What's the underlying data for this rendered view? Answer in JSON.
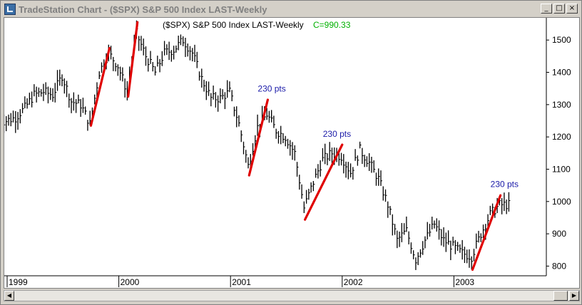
{
  "window": {
    "title": "TradeStation Chart - ($SPX) S&P 500 Index LAST-Weekly",
    "minimize_glyph": "_",
    "maximize_glyph": "□",
    "close_glyph": "×",
    "icon": "chart-app-icon"
  },
  "chart": {
    "header": "($SPX) S&P 500 Index LAST-Weekly",
    "close_label": "C=990.33",
    "colors": {
      "bars": "#000000",
      "trendlines": "#e00000",
      "annotation": "#1a1aa8",
      "close_label": "#00b000",
      "axis": "#000000"
    },
    "annotations": [
      "230 pts",
      "230 pts",
      "230 pts"
    ]
  },
  "scrollbar": {
    "left_glyph": "◀",
    "right_glyph": "▶"
  },
  "chart_data": {
    "type": "bar",
    "title": "($SPX) S&P 500 Index LAST-Weekly",
    "y_ticks": [
      800,
      900,
      1000,
      1100,
      1200,
      1300,
      1400,
      1500
    ],
    "x_ticks": [
      "1999",
      "2000",
      "2001",
      "2002",
      "2003"
    ],
    "ylim": [
      770,
      1560
    ],
    "series": [
      {
        "type": "ohlc",
        "points": [
          {
            "x": "1999-01",
            "close": 1250
          },
          {
            "x": "1999-02",
            "close": 1260
          },
          {
            "x": "1999-03",
            "close": 1290
          },
          {
            "x": "1999-04",
            "close": 1330
          },
          {
            "x": "1999-05",
            "close": 1340
          },
          {
            "x": "1999-06",
            "close": 1330
          },
          {
            "x": "1999-07",
            "close": 1390
          },
          {
            "x": "1999-08",
            "close": 1310
          },
          {
            "x": "1999-09",
            "close": 1300
          },
          {
            "x": "1999-10",
            "close": 1240
          },
          {
            "x": "1999-11",
            "close": 1400
          },
          {
            "x": "1999-12",
            "close": 1460
          },
          {
            "x": "2000-01",
            "close": 1420
          },
          {
            "x": "2000-02",
            "close": 1340
          },
          {
            "x": "2000-03",
            "close": 1520
          },
          {
            "x": "2000-04",
            "close": 1450
          },
          {
            "x": "2000-05",
            "close": 1400
          },
          {
            "x": "2000-06",
            "close": 1460
          },
          {
            "x": "2000-07",
            "close": 1470
          },
          {
            "x": "2000-08",
            "close": 1500
          },
          {
            "x": "2000-09",
            "close": 1460
          },
          {
            "x": "2000-10",
            "close": 1380
          },
          {
            "x": "2000-11",
            "close": 1320
          },
          {
            "x": "2000-12",
            "close": 1320
          },
          {
            "x": "2001-01",
            "close": 1340
          },
          {
            "x": "2001-02",
            "close": 1240
          },
          {
            "x": "2001-03",
            "close": 1110
          },
          {
            "x": "2001-04",
            "close": 1230
          },
          {
            "x": "2001-05",
            "close": 1270
          },
          {
            "x": "2001-06",
            "close": 1220
          },
          {
            "x": "2001-07",
            "close": 1200
          },
          {
            "x": "2001-08",
            "close": 1150
          },
          {
            "x": "2001-09",
            "close": 980
          },
          {
            "x": "2001-10",
            "close": 1060
          },
          {
            "x": "2001-11",
            "close": 1130
          },
          {
            "x": "2001-12",
            "close": 1150
          },
          {
            "x": "2002-01",
            "close": 1140
          },
          {
            "x": "2002-02",
            "close": 1090
          },
          {
            "x": "2002-03",
            "close": 1160
          },
          {
            "x": "2002-04",
            "close": 1120
          },
          {
            "x": "2002-05",
            "close": 1070
          },
          {
            "x": "2002-06",
            "close": 990
          },
          {
            "x": "2002-07",
            "close": 880
          },
          {
            "x": "2002-08",
            "close": 910
          },
          {
            "x": "2002-09",
            "close": 820
          },
          {
            "x": "2002-10",
            "close": 880
          },
          {
            "x": "2002-11",
            "close": 930
          },
          {
            "x": "2002-12",
            "close": 880
          },
          {
            "x": "2003-01",
            "close": 860
          },
          {
            "x": "2003-02",
            "close": 840
          },
          {
            "x": "2003-03",
            "close": 830
          },
          {
            "x": "2003-04",
            "close": 900
          },
          {
            "x": "2003-05",
            "close": 960
          },
          {
            "x": "2003-06",
            "close": 990
          },
          {
            "x": "2003-07",
            "close": 990
          }
        ]
      }
    ],
    "trendlines": [
      {
        "from": {
          "x": "1999-10",
          "y": 1235
        },
        "to": {
          "x": "1999-12",
          "y": 1475
        }
      },
      {
        "from": {
          "x": "2000-02",
          "y": 1325
        },
        "to": {
          "x": "2000-03",
          "y": 1555
        }
      },
      {
        "from": {
          "x": "2001-03",
          "y": 1081
        },
        "to": {
          "x": "2001-05",
          "y": 1315
        }
      },
      {
        "from": {
          "x": "2001-09",
          "y": 944
        },
        "to": {
          "x": "2002-01",
          "y": 1176
        }
      },
      {
        "from": {
          "x": "2003-03",
          "y": 789
        },
        "to": {
          "x": "2003-06",
          "y": 1019
        }
      }
    ],
    "annotations": [
      {
        "text": "230 pts",
        "x": "2001-05",
        "y": 1340
      },
      {
        "text": "230 pts",
        "x": "2001-12",
        "y": 1200
      },
      {
        "text": "230 pts",
        "x": "2003-06",
        "y": 1045
      }
    ],
    "last_close": 990.33
  }
}
